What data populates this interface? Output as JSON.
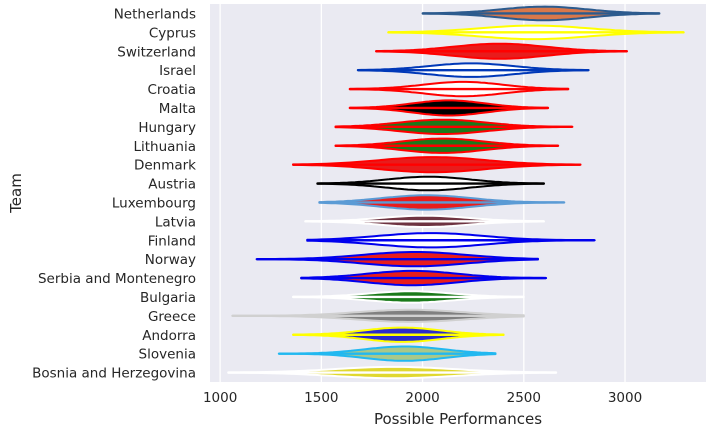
{
  "chart_data": {
    "type": "violin",
    "orientation": "horizontal",
    "xlabel": "Possible Performances",
    "ylabel": "Team",
    "xlim": [
      950,
      3400
    ],
    "xticks": [
      1000,
      1500,
      2000,
      2500,
      3000
    ],
    "grid": true,
    "background": "#eaeaf2",
    "teams": [
      {
        "name": "Netherlands",
        "min": 2000,
        "max": 3170,
        "median": 2600,
        "halfwidth": 0.36,
        "fill": "#d8784b",
        "edge": "#2c5b8e"
      },
      {
        "name": "Cyprus",
        "min": 1830,
        "max": 3290,
        "median": 2550,
        "halfwidth": 0.36,
        "fill": "#ffffff",
        "edge": "#ffff00"
      },
      {
        "name": "Switzerland",
        "min": 1770,
        "max": 3010,
        "median": 2380,
        "halfwidth": 0.4,
        "fill": "#e81c1c",
        "edge": "#ff0000"
      },
      {
        "name": "Israel",
        "min": 1680,
        "max": 2820,
        "median": 2240,
        "halfwidth": 0.36,
        "fill": "#ffffff",
        "edge": "#0038b8"
      },
      {
        "name": "Croatia",
        "min": 1640,
        "max": 2720,
        "median": 2200,
        "halfwidth": 0.38,
        "fill": "#ffffff",
        "edge": "#ff0000"
      },
      {
        "name": "Malta",
        "min": 1640,
        "max": 2620,
        "median": 2130,
        "halfwidth": 0.4,
        "fill": "#000000",
        "edge": "#ff0000"
      },
      {
        "name": "Hungary",
        "min": 1570,
        "max": 2740,
        "median": 2100,
        "halfwidth": 0.38,
        "fill": "#1a7a1a",
        "edge": "#ff0000"
      },
      {
        "name": "Lithuania",
        "min": 1570,
        "max": 2670,
        "median": 2100,
        "halfwidth": 0.38,
        "fill": "#1a7a1a",
        "edge": "#ff0000"
      },
      {
        "name": "Denmark",
        "min": 1360,
        "max": 2780,
        "median": 2050,
        "halfwidth": 0.4,
        "fill": "#e81c1c",
        "edge": "#ff0000"
      },
      {
        "name": "Austria",
        "min": 1480,
        "max": 2600,
        "median": 2030,
        "halfwidth": 0.36,
        "fill": "#ffffff",
        "edge": "#000000"
      },
      {
        "name": "Luxembourg",
        "min": 1490,
        "max": 2700,
        "median": 2020,
        "halfwidth": 0.38,
        "fill": "#e81c1c",
        "edge": "#5b9bd5"
      },
      {
        "name": "Latvia",
        "min": 1420,
        "max": 2600,
        "median": 2010,
        "halfwidth": 0.3,
        "fill": "#6e3341",
        "edge": "#ffffff"
      },
      {
        "name": "Finland",
        "min": 1430,
        "max": 2850,
        "median": 2040,
        "halfwidth": 0.38,
        "fill": "#ffffff",
        "edge": "#0000ee"
      },
      {
        "name": "Norway",
        "min": 1180,
        "max": 2570,
        "median": 1960,
        "halfwidth": 0.38,
        "fill": "#e81c1c",
        "edge": "#0000ee"
      },
      {
        "name": "Serbia and Montenegro",
        "min": 1400,
        "max": 2610,
        "median": 1950,
        "halfwidth": 0.38,
        "fill": "#e81c1c",
        "edge": "#0000ee"
      },
      {
        "name": "Bulgaria",
        "min": 1360,
        "max": 2500,
        "median": 1940,
        "halfwidth": 0.3,
        "fill": "#1a7a1a",
        "edge": "#ffffff"
      },
      {
        "name": "Greece",
        "min": 1060,
        "max": 2500,
        "median": 1940,
        "halfwidth": 0.32,
        "fill": "#808080",
        "edge": "#d0d0d0"
      },
      {
        "name": "Andorra",
        "min": 1360,
        "max": 2400,
        "median": 1900,
        "halfwidth": 0.38,
        "fill": "#2a2acc",
        "edge": "#ffff00"
      },
      {
        "name": "Slovenia",
        "min": 1290,
        "max": 2360,
        "median": 1910,
        "halfwidth": 0.38,
        "fill": "#a8c88a",
        "edge": "#22b8f0"
      },
      {
        "name": "Bosnia and Herzegovina",
        "min": 1040,
        "max": 2660,
        "median": 1860,
        "halfwidth": 0.3,
        "fill": "#e0d830",
        "edge": "#ffffff"
      }
    ]
  }
}
